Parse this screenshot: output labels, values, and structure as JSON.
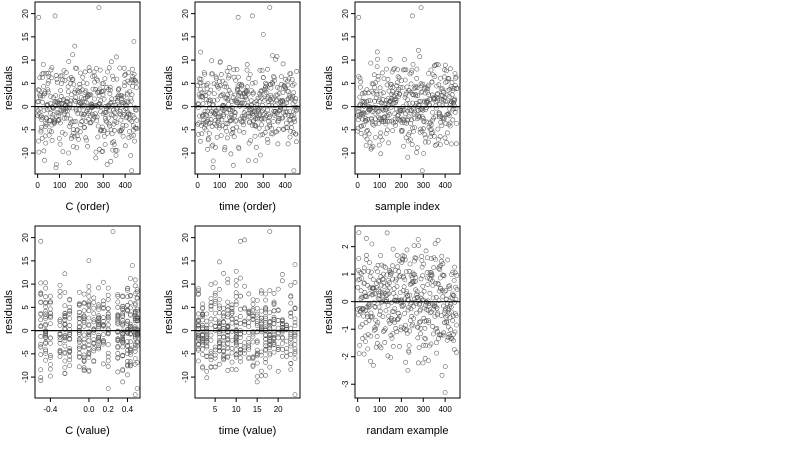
{
  "chart_data": [
    {
      "type": "scatter",
      "ylabel": "residuals",
      "xlabel": "C (order)",
      "xlim": [
        -12,
        468
      ],
      "ylim": [
        -14.5,
        22.5
      ],
      "xticks": [
        0,
        100,
        200,
        300,
        400
      ],
      "yticks": [
        -10,
        -5,
        0,
        5,
        10,
        15,
        20
      ],
      "hline": 0,
      "grid": false,
      "x_spread": "uniform",
      "count": 460,
      "y_model": {
        "mean": 0,
        "sd": 4.6,
        "min": -13.5,
        "max": 21.5
      },
      "highlights": [
        [
          5,
          19.2
        ],
        [
          80,
          19.5
        ],
        [
          280,
          21.3
        ],
        [
          430,
          -13.8
        ],
        [
          440,
          14
        ]
      ]
    },
    {
      "type": "scatter",
      "ylabel": "residuals",
      "xlabel": "time (order)",
      "xlim": [
        -12,
        468
      ],
      "ylim": [
        -14.5,
        22.5
      ],
      "xticks": [
        0,
        100,
        200,
        300,
        400
      ],
      "yticks": [
        -10,
        -5,
        0,
        5,
        10,
        15,
        20
      ],
      "hline": 0,
      "grid": false,
      "x_spread": "uniform",
      "count": 460,
      "y_model": {
        "mean": 0,
        "sd": 4.6,
        "min": -13.5,
        "max": 21.5
      },
      "highlights": [
        [
          185,
          19.2
        ],
        [
          250,
          19.5
        ],
        [
          330,
          21.3
        ],
        [
          440,
          -13.8
        ],
        [
          300,
          15.5
        ]
      ]
    },
    {
      "type": "scatter",
      "ylabel": "residuals",
      "xlabel": "sample index",
      "xlim": [
        -12,
        468
      ],
      "ylim": [
        -14.5,
        22.5
      ],
      "xticks": [
        0,
        100,
        200,
        300,
        400
      ],
      "yticks": [
        -10,
        -5,
        0,
        5,
        10,
        15,
        20
      ],
      "hline": 0,
      "grid": false,
      "x_spread": "uniform",
      "count": 460,
      "y_model": {
        "mean": 0,
        "sd": 4.6,
        "min": -13.5,
        "max": 21.5
      },
      "highlights": [
        [
          5,
          19.2
        ],
        [
          290,
          21.3
        ],
        [
          295,
          -13.8
        ],
        [
          250,
          19.5
        ]
      ]
    },
    {
      "type": "scatter",
      "ylabel": "residuals",
      "xlabel": "C (value)",
      "xlim": [
        -0.56,
        0.53
      ],
      "ylim": [
        -14.5,
        22.5
      ],
      "xticks": [
        -0.4,
        0.0,
        0.2,
        0.4
      ],
      "yticks": [
        -10,
        -5,
        0,
        5,
        10,
        15,
        20
      ],
      "hline": 0,
      "grid": false,
      "x_spread": "columns",
      "x_columns": [
        -0.5,
        -0.45,
        -0.4,
        -0.3,
        -0.25,
        -0.2,
        -0.1,
        -0.05,
        0.0,
        0.05,
        0.1,
        0.15,
        0.2,
        0.3,
        0.35,
        0.4,
        0.43,
        0.48,
        0.5
      ],
      "count": 460,
      "y_model": {
        "mean": 0,
        "sd": 4.6,
        "min": -13.5,
        "max": 21.5
      },
      "highlights": [
        [
          -0.5,
          19.2
        ],
        [
          0.25,
          21.3
        ],
        [
          0.48,
          -13.8
        ],
        [
          0.45,
          14
        ]
      ]
    },
    {
      "type": "scatter",
      "ylabel": "residuals",
      "xlabel": "time (value)",
      "xlim": [
        0.2,
        25.2
      ],
      "ylim": [
        -14.5,
        22.5
      ],
      "xticks": [
        5,
        10,
        15,
        20
      ],
      "yticks": [
        -10,
        -5,
        0,
        5,
        10,
        15,
        20
      ],
      "hline": 0,
      "grid": false,
      "x_spread": "columns",
      "x_columns": [
        1,
        2,
        3,
        4,
        5,
        6,
        7,
        8,
        9,
        10,
        11,
        12,
        13,
        14,
        15,
        16,
        17,
        18,
        19,
        20,
        21,
        22,
        23,
        24
      ],
      "count": 460,
      "y_model": {
        "mean": 0,
        "sd": 4.6,
        "min": -13.5,
        "max": 21.5
      },
      "highlights": [
        [
          11,
          19.2
        ],
        [
          12,
          19.5
        ],
        [
          18,
          21.3
        ],
        [
          24,
          -13.8
        ],
        [
          24,
          14.2
        ]
      ]
    },
    {
      "type": "scatter",
      "ylabel": "residuals",
      "xlabel": "randam example",
      "xlim": [
        -12,
        468
      ],
      "ylim": [
        -3.5,
        2.75
      ],
      "xticks": [
        0,
        100,
        200,
        300,
        400
      ],
      "yticks": [
        -3,
        -2,
        -1,
        0,
        1,
        2
      ],
      "hline": 0,
      "grid": false,
      "x_spread": "uniform",
      "count": 460,
      "y_model": {
        "mean": 0,
        "sd": 1.0,
        "min": -3.3,
        "max": 2.6
      },
      "highlights": [
        [
          400,
          -3.3
        ],
        [
          230,
          -2.5
        ],
        [
          40,
          2.3
        ]
      ]
    }
  ],
  "colors": {
    "points": "#555555",
    "axes": "#000000",
    "background": "#ffffff"
  }
}
